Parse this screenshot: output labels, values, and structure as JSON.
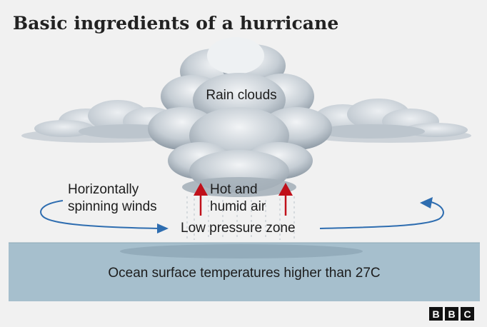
{
  "title": "Basic ingredients of a hurricane",
  "labels": {
    "rain_clouds": "Rain clouds",
    "winds_line1": "Horizontally",
    "winds_line2": "spinning winds",
    "hot_line1": "Hot and",
    "hot_line2": "humid air",
    "low_pressure": "Low pressure zone",
    "ocean": "Ocean surface temperatures higher than 27C"
  },
  "logo": [
    "B",
    "B",
    "C"
  ],
  "colors": {
    "background": "#f1f1f1",
    "ocean": "#a6bfcd",
    "wind_arrow": "#2e6db0",
    "heat_arrow": "#c0101a",
    "cloud": "#c9d1d8"
  }
}
